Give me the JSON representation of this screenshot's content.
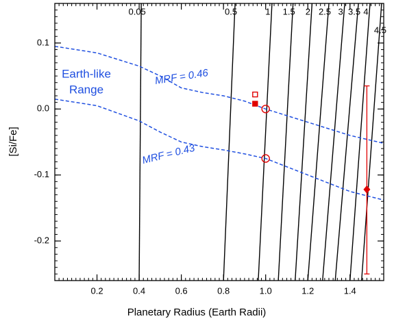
{
  "chart_data": {
    "type": "line",
    "xlabel": "Planetary Radius (Earth Radii)",
    "ylabel": "[Si/Fe]",
    "xlim": [
      0,
      1.56
    ],
    "ylim": [
      -0.26,
      0.16
    ],
    "xticks": [
      0.2,
      0.4,
      0.6,
      0.8,
      {
        "value": 1,
        "label": "1.0"
      },
      1.2,
      1.4
    ],
    "yticks": [
      -0.2,
      -0.1,
      {
        "value": 0,
        "label": "0.0"
      },
      0.1
    ],
    "annotation": [
      "Earth-like",
      "Range"
    ],
    "annotation_color": "#1f4fe0",
    "series": [
      {
        "name": "MRF = 0.46",
        "color": "#1f4fe0",
        "x": [
          0,
          0.2,
          0.4,
          0.5,
          0.6,
          0.7,
          0.8,
          0.9,
          1.0,
          1.2,
          1.4,
          1.56
        ],
        "y": [
          0.095,
          0.085,
          0.065,
          0.05,
          0.032,
          0.025,
          0.02,
          0.012,
          0.0,
          -0.02,
          -0.04,
          -0.052
        ]
      },
      {
        "name": "MRF = 0.43",
        "color": "#1f4fe0",
        "x": [
          0,
          0.2,
          0.4,
          0.5,
          0.6,
          0.7,
          0.8,
          0.9,
          1.0,
          1.2,
          1.4,
          1.56
        ],
        "y": [
          0.015,
          0.005,
          -0.018,
          -0.035,
          -0.05,
          -0.057,
          -0.062,
          -0.068,
          -0.075,
          -0.1,
          -0.125,
          -0.138
        ]
      }
    ],
    "contour_color": "#000000",
    "contours": [
      {
        "label": "0.05",
        "x": [
          0.4,
          0.41
        ],
        "y": [
          -0.26,
          0.16
        ]
      },
      {
        "label": "0.5",
        "x": [
          0.8,
          0.855
        ],
        "y": [
          -0.26,
          0.16
        ]
      },
      {
        "label": "1",
        "x": [
          0.965,
          1.03
        ],
        "y": [
          -0.26,
          0.16
        ]
      },
      {
        "label": "1.5",
        "x": [
          1.06,
          1.13
        ],
        "y": [
          -0.26,
          0.16
        ]
      },
      {
        "label": "2",
        "x": [
          1.14,
          1.22
        ],
        "y": [
          -0.26,
          0.16
        ]
      },
      {
        "label": "2.5",
        "x": [
          1.2,
          1.3
        ],
        "y": [
          -0.26,
          0.16
        ]
      },
      {
        "label": "3",
        "x": [
          1.27,
          1.375
        ],
        "y": [
          -0.26,
          0.16
        ]
      },
      {
        "label": "3.5",
        "x": [
          1.33,
          1.44
        ],
        "y": [
          -0.26,
          0.16
        ]
      },
      {
        "label": "4",
        "x": [
          1.4,
          1.495
        ],
        "y": [
          -0.26,
          0.16
        ]
      },
      {
        "label": "4.5",
        "x": [
          1.455,
          1.55
        ],
        "y": [
          -0.26,
          0.16
        ]
      }
    ],
    "points": [
      {
        "x": 1.0,
        "y": 0.0,
        "marker": "open-circle",
        "color": "#e00000"
      },
      {
        "x": 1.0,
        "y": -0.075,
        "marker": "open-circle",
        "color": "#e00000"
      },
      {
        "x": 0.95,
        "y": 0.022,
        "marker": "open-square",
        "color": "#e00000"
      },
      {
        "x": 0.95,
        "y": 0.008,
        "marker": "filled-square",
        "color": "#e00000"
      }
    ],
    "error_point": {
      "x": 1.48,
      "y": -0.122,
      "ylow": -0.25,
      "yhigh": 0.035,
      "color": "#e00000"
    }
  }
}
